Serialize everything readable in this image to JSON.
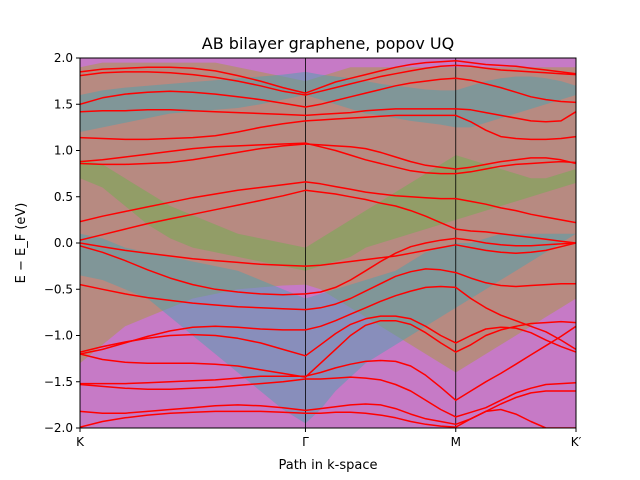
{
  "chart_data": {
    "type": "line",
    "title": "AB bilayer graphene, popov UQ",
    "xlabel": "Path in k-space",
    "ylabel": "E − E_F (eV)",
    "ylim": [
      -2.0,
      2.0
    ],
    "yticks": [
      -2.0,
      -1.5,
      -1.0,
      -0.5,
      0.0,
      0.5,
      1.0,
      1.5,
      2.0
    ],
    "ytick_labels": [
      "−2.0",
      "−1.5",
      "−1.0",
      "−0.5",
      "0.0",
      "0.5",
      "1.0",
      "1.5",
      "2.0"
    ],
    "xlim": [
      0,
      3.3
    ],
    "xticks": [
      0,
      1.5,
      2.5,
      3.3
    ],
    "xtick_labels": [
      "K",
      "Γ",
      "M",
      "K′"
    ],
    "high_symmetry_lines": [
      1.5,
      2.5
    ],
    "bands_color": "#ff0000",
    "bands_x": [
      0,
      0.15,
      0.3,
      0.45,
      0.6,
      0.75,
      0.9,
      1.05,
      1.2,
      1.35,
      1.5,
      1.6,
      1.7,
      1.8,
      1.9,
      2.0,
      2.1,
      2.2,
      2.3,
      2.4,
      2.5,
      2.6,
      2.7,
      2.8,
      2.9,
      3.0,
      3.1,
      3.2,
      3.3
    ],
    "bands": [
      [
        1.85,
        1.88,
        1.89,
        1.9,
        1.9,
        1.89,
        1.86,
        1.81,
        1.75,
        1.68,
        1.62,
        1.68,
        1.74,
        1.78,
        1.82,
        1.86,
        1.9,
        1.93,
        1.95,
        1.96,
        1.97,
        1.95,
        1.93,
        1.92,
        1.91,
        1.89,
        1.87,
        1.85,
        1.83
      ],
      [
        1.81,
        1.84,
        1.85,
        1.85,
        1.84,
        1.82,
        1.79,
        1.75,
        1.7,
        1.64,
        1.6,
        1.64,
        1.68,
        1.72,
        1.76,
        1.8,
        1.83,
        1.86,
        1.89,
        1.91,
        1.92,
        1.91,
        1.89,
        1.87,
        1.86,
        1.85,
        1.84,
        1.83,
        1.82
      ],
      [
        1.5,
        1.57,
        1.61,
        1.63,
        1.64,
        1.63,
        1.61,
        1.58,
        1.55,
        1.51,
        1.47,
        1.5,
        1.54,
        1.58,
        1.62,
        1.66,
        1.7,
        1.73,
        1.75,
        1.77,
        1.78,
        1.76,
        1.72,
        1.68,
        1.63,
        1.58,
        1.55,
        1.53,
        1.52
      ],
      [
        1.42,
        1.43,
        1.43,
        1.44,
        1.44,
        1.43,
        1.42,
        1.41,
        1.4,
        1.39,
        1.38,
        1.39,
        1.4,
        1.41,
        1.43,
        1.44,
        1.45,
        1.45,
        1.45,
        1.45,
        1.45,
        1.44,
        1.41,
        1.38,
        1.35,
        1.32,
        1.31,
        1.32,
        1.42
      ],
      [
        1.14,
        1.13,
        1.12,
        1.12,
        1.13,
        1.14,
        1.16,
        1.2,
        1.25,
        1.29,
        1.32,
        1.33,
        1.34,
        1.35,
        1.36,
        1.37,
        1.38,
        1.38,
        1.38,
        1.38,
        1.38,
        1.31,
        1.22,
        1.15,
        1.13,
        1.12,
        1.12,
        1.13,
        1.15
      ],
      [
        0.88,
        0.9,
        0.93,
        0.96,
        0.99,
        1.02,
        1.04,
        1.05,
        1.06,
        1.07,
        1.08,
        1.04,
        1.0,
        0.95,
        0.9,
        0.86,
        0.82,
        0.78,
        0.76,
        0.75,
        0.75,
        0.77,
        0.8,
        0.83,
        0.85,
        0.86,
        0.87,
        0.88,
        0.87
      ],
      [
        0.86,
        0.85,
        0.85,
        0.86,
        0.87,
        0.9,
        0.94,
        0.98,
        1.02,
        1.05,
        1.07,
        1.06,
        1.05,
        1.04,
        1.02,
        0.98,
        0.93,
        0.88,
        0.84,
        0.82,
        0.8,
        0.82,
        0.85,
        0.88,
        0.9,
        0.92,
        0.92,
        0.9,
        0.86
      ],
      [
        0.23,
        0.29,
        0.34,
        0.39,
        0.44,
        0.49,
        0.53,
        0.57,
        0.6,
        0.63,
        0.66,
        0.64,
        0.61,
        0.58,
        0.55,
        0.53,
        0.51,
        0.5,
        0.49,
        0.48,
        0.48,
        0.45,
        0.42,
        0.38,
        0.35,
        0.31,
        0.28,
        0.25,
        0.22
      ],
      [
        0.03,
        0.09,
        0.15,
        0.21,
        0.26,
        0.31,
        0.36,
        0.41,
        0.46,
        0.51,
        0.57,
        0.55,
        0.53,
        0.5,
        0.47,
        0.43,
        0.4,
        0.35,
        0.29,
        0.22,
        0.15,
        0.13,
        0.12,
        0.1,
        0.08,
        0.06,
        0.04,
        0.02,
        0.0
      ],
      [
        0.0,
        -0.04,
        -0.08,
        -0.11,
        -0.14,
        -0.17,
        -0.19,
        -0.21,
        -0.23,
        -0.24,
        -0.25,
        -0.24,
        -0.22,
        -0.2,
        -0.18,
        -0.16,
        -0.14,
        -0.11,
        -0.08,
        -0.05,
        -0.02,
        -0.05,
        -0.08,
        -0.1,
        -0.11,
        -0.1,
        -0.08,
        -0.04,
        0.0
      ],
      [
        -0.03,
        -0.1,
        -0.19,
        -0.29,
        -0.38,
        -0.45,
        -0.5,
        -0.53,
        -0.55,
        -0.56,
        -0.55,
        -0.53,
        -0.48,
        -0.4,
        -0.3,
        -0.2,
        -0.11,
        -0.04,
        0.0,
        0.03,
        0.05,
        0.03,
        0.0,
        -0.02,
        -0.03,
        -0.03,
        -0.02,
        -0.01,
        0.0
      ],
      [
        -0.45,
        -0.5,
        -0.55,
        -0.59,
        -0.62,
        -0.65,
        -0.67,
        -0.69,
        -0.7,
        -0.71,
        -0.72,
        -0.7,
        -0.66,
        -0.6,
        -0.52,
        -0.44,
        -0.36,
        -0.31,
        -0.28,
        -0.29,
        -0.32,
        -0.38,
        -0.43,
        -0.46,
        -0.47,
        -0.46,
        -0.45,
        -0.44,
        -0.44
      ],
      [
        -1.2,
        -1.15,
        -1.08,
        -1.01,
        -0.95,
        -0.91,
        -0.9,
        -0.91,
        -0.93,
        -0.94,
        -0.94,
        -0.9,
        -0.84,
        -0.77,
        -0.7,
        -0.63,
        -0.57,
        -0.52,
        -0.48,
        -0.47,
        -0.48,
        -0.6,
        -0.7,
        -0.78,
        -0.84,
        -0.9,
        -0.96,
        -1.05,
        -1.15
      ],
      [
        -1.18,
        -1.12,
        -1.07,
        -1.03,
        -1.0,
        -0.99,
        -1.0,
        -1.03,
        -1.08,
        -1.15,
        -1.22,
        -1.1,
        -0.98,
        -0.88,
        -0.82,
        -0.79,
        -0.79,
        -0.82,
        -0.9,
        -1.0,
        -1.08,
        -1.0,
        -0.93,
        -0.91,
        -0.92,
        -0.97,
        -1.05,
        -1.12,
        -1.18
      ],
      [
        -1.2,
        -1.26,
        -1.29,
        -1.3,
        -1.3,
        -1.3,
        -1.31,
        -1.33,
        -1.37,
        -1.41,
        -1.45,
        -1.3,
        -1.15,
        -1.0,
        -0.89,
        -0.84,
        -0.84,
        -0.88,
        -0.97,
        -1.08,
        -1.18,
        -1.1,
        -1.0,
        -0.94,
        -0.9,
        -0.87,
        -0.86,
        -0.85,
        -0.86
      ],
      [
        -1.52,
        -1.52,
        -1.52,
        -1.51,
        -1.5,
        -1.49,
        -1.48,
        -1.46,
        -1.44,
        -1.44,
        -1.44,
        -1.4,
        -1.35,
        -1.31,
        -1.28,
        -1.27,
        -1.28,
        -1.33,
        -1.43,
        -1.56,
        -1.7,
        -1.6,
        -1.5,
        -1.41,
        -1.31,
        -1.21,
        -1.11,
        -1.01,
        -0.9
      ],
      [
        -1.53,
        -1.55,
        -1.57,
        -1.58,
        -1.58,
        -1.57,
        -1.56,
        -1.54,
        -1.52,
        -1.5,
        -1.47,
        -1.47,
        -1.46,
        -1.45,
        -1.46,
        -1.48,
        -1.53,
        -1.6,
        -1.7,
        -1.8,
        -1.88,
        -1.83,
        -1.78,
        -1.7,
        -1.62,
        -1.57,
        -1.53,
        -1.52,
        -1.51
      ],
      [
        -1.82,
        -1.84,
        -1.84,
        -1.82,
        -1.8,
        -1.78,
        -1.76,
        -1.75,
        -1.76,
        -1.78,
        -1.81,
        -1.79,
        -1.77,
        -1.75,
        -1.74,
        -1.75,
        -1.79,
        -1.85,
        -1.9,
        -1.93,
        -1.96,
        -1.9,
        -1.82,
        -1.74,
        -1.67,
        -1.62,
        -1.6,
        -1.6,
        -1.6
      ],
      [
        -1.99,
        -1.93,
        -1.89,
        -1.86,
        -1.84,
        -1.83,
        -1.82,
        -1.82,
        -1.82,
        -1.83,
        -1.84,
        -1.84,
        -1.83,
        -1.83,
        -1.84,
        -1.86,
        -1.89,
        -1.93,
        -1.96,
        -1.98,
        -1.99,
        -1.9,
        -1.82,
        -1.8,
        -1.85,
        -1.93,
        -2.0,
        -2.0,
        -2.0
      ]
    ],
    "uncertainty_bands": [
      {
        "color": "#c06cc0",
        "lo": [
          -2.0,
          -2.0,
          -2.0,
          -2.0,
          -2.0,
          -2.0,
          -2.0,
          -2.0,
          -2.0,
          -2.0,
          -2.0,
          -2.0,
          -2.0,
          -2.0,
          -2.0,
          -2.0,
          -2.0,
          -2.0,
          -2.0,
          -2.0,
          -2.0,
          -2.0,
          -2.0,
          -2.0,
          -2.0,
          -2.0,
          -2.0,
          -2.0,
          -2.0
        ],
        "hi": [
          2.0,
          2.0,
          2.0,
          2.0,
          2.0,
          2.0,
          2.0,
          2.0,
          2.0,
          2.0,
          2.0,
          2.0,
          2.0,
          2.0,
          2.0,
          2.0,
          2.0,
          2.0,
          2.0,
          2.0,
          2.0,
          2.0,
          2.0,
          2.0,
          2.0,
          2.0,
          2.0,
          2.0,
          2.0
        ]
      },
      {
        "color": "#a89a3c",
        "lo": [
          -1.3,
          -1.1,
          -0.9,
          -0.8,
          -0.7,
          -0.6,
          -0.55,
          -0.5,
          -0.48,
          -0.46,
          -0.45,
          -0.5,
          -0.6,
          -0.7,
          -0.8,
          -0.9,
          -1.0,
          -1.1,
          -1.2,
          -1.3,
          -1.4,
          -1.3,
          -1.2,
          -1.1,
          -1.0,
          -0.9,
          -0.8,
          -0.7,
          -0.6
        ],
        "hi": [
          1.9,
          1.95,
          1.95,
          1.95,
          1.95,
          1.95,
          1.95,
          1.9,
          1.85,
          1.8,
          1.75,
          1.8,
          1.85,
          1.9,
          1.9,
          1.9,
          1.9,
          1.9,
          1.9,
          1.9,
          1.9,
          1.9,
          1.9,
          1.9,
          1.9,
          1.9,
          1.9,
          1.9,
          1.9
        ]
      },
      {
        "color": "#4aa2b0",
        "lo": [
          -0.35,
          -0.4,
          -0.5,
          -0.6,
          -0.8,
          -1.0,
          -1.2,
          -1.4,
          -1.6,
          -1.8,
          -1.95,
          -1.8,
          -1.6,
          -1.45,
          -1.3,
          -1.2,
          -1.1,
          -1.0,
          -0.9,
          -0.8,
          -0.7,
          -0.6,
          -0.5,
          -0.4,
          -0.3,
          -0.2,
          -0.1,
          0.0,
          0.1
        ],
        "hi": [
          0.1,
          0.05,
          -0.05,
          -0.1,
          -0.15,
          -0.2,
          -0.25,
          -0.3,
          -0.4,
          -0.5,
          -0.6,
          -0.55,
          -0.5,
          -0.45,
          -0.4,
          -0.35,
          -0.3,
          -0.2,
          -0.1,
          -0.05,
          0.0,
          0.0,
          0.05,
          0.1,
          0.1,
          0.1,
          0.1,
          0.1,
          0.1
        ]
      },
      {
        "color": "#6db04d",
        "lo": [
          0.7,
          0.6,
          0.4,
          0.2,
          0.05,
          -0.05,
          -0.1,
          -0.15,
          -0.2,
          -0.25,
          -0.3,
          -0.25,
          -0.2,
          -0.15,
          -0.05,
          0.0,
          0.05,
          0.1,
          0.15,
          0.2,
          0.25,
          0.3,
          0.35,
          0.4,
          0.45,
          0.5,
          0.55,
          0.6,
          0.65
        ],
        "hi": [
          0.9,
          0.85,
          0.7,
          0.55,
          0.4,
          0.3,
          0.2,
          0.1,
          0.05,
          0.0,
          -0.05,
          0.05,
          0.15,
          0.25,
          0.35,
          0.45,
          0.55,
          0.65,
          0.75,
          0.85,
          0.95,
          0.9,
          0.85,
          0.8,
          0.75,
          0.7,
          0.7,
          0.75,
          0.8
        ]
      },
      {
        "color": "#4aa2b0",
        "lo": [
          1.2,
          1.25,
          1.3,
          1.35,
          1.4,
          1.42,
          1.44,
          1.46,
          1.5,
          1.55,
          1.6,
          1.55,
          1.5,
          1.45,
          1.4,
          1.38,
          1.35,
          1.32,
          1.3,
          1.28,
          1.25,
          1.25,
          1.3,
          1.35,
          1.4,
          1.45,
          1.5,
          1.55,
          1.6
        ],
        "hi": [
          1.6,
          1.65,
          1.68,
          1.7,
          1.72,
          1.74,
          1.76,
          1.78,
          1.8,
          1.82,
          1.85,
          1.82,
          1.8,
          1.78,
          1.75,
          1.72,
          1.7,
          1.68,
          1.66,
          1.65,
          1.65,
          1.7,
          1.75,
          1.78,
          1.8,
          1.8,
          1.78,
          1.75,
          1.7
        ]
      }
    ]
  }
}
